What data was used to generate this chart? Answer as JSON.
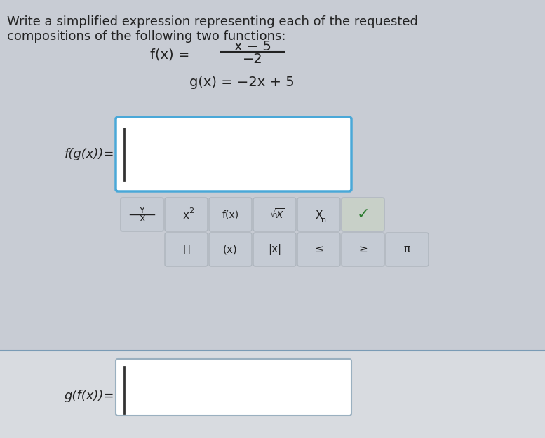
{
  "bg_color": "#d0d4db",
  "top_section_bg": "#c8ccd4",
  "bottom_section_bg": "#d8dbe0",
  "title_text": "Write a simplified expression representing each of the requested\ncompositions of the following two functions:",
  "fx_text": "f(x) =",
  "fx_numerator": "x − 5",
  "fx_denominator": "−2",
  "gx_text": "g(x) = −2x + 5",
  "fg_label": "f(g(x))=",
  "gf_label": "g(f(x))=",
  "input_box1_color": "#4aa8d8",
  "input_box2_color": "#b0bec5",
  "divider_color": "#7a9bb5",
  "button_bg": "#c5cbd4",
  "button_border": "#adb5bd",
  "buttons_row1": [
    "Y\nX",
    "x²",
    "f(x)",
    "ⁿ√X",
    "Xₙ",
    "✓"
  ],
  "buttons_row2": [
    "🗑",
    "(x)",
    "|x|",
    "≤",
    "≥",
    "π"
  ],
  "check_color": "#2e7d32",
  "text_color": "#222222",
  "cursor_color": "#333333",
  "title_fontsize": 13,
  "label_fontsize": 13,
  "button_fontsize": 11
}
